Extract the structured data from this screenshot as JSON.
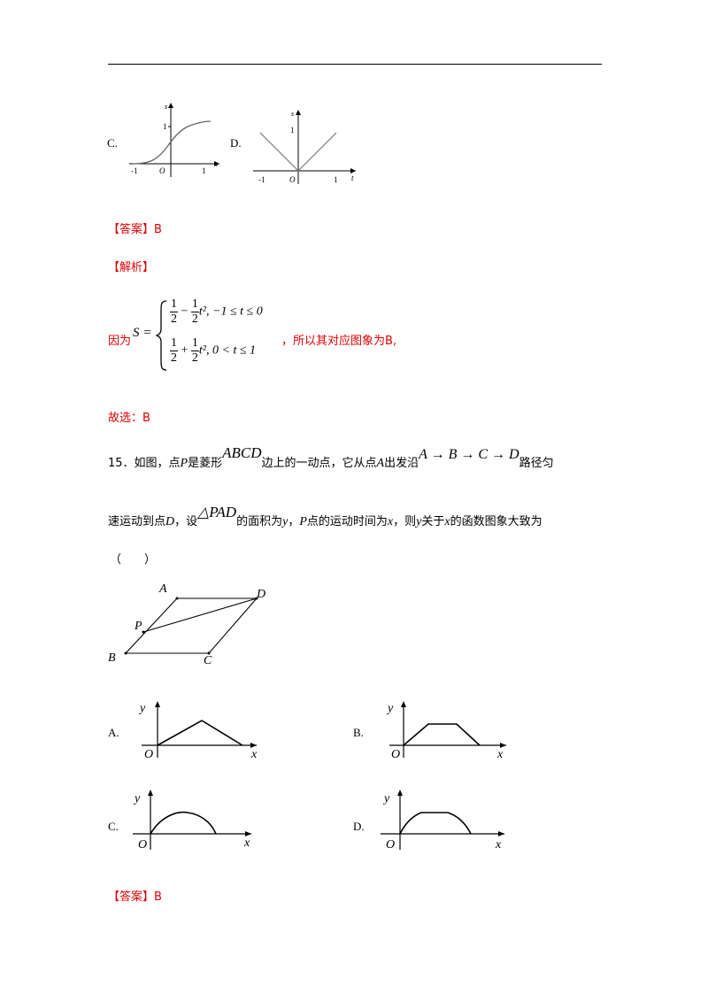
{
  "q14": {
    "opt_c_label": "C.",
    "opt_d_label": "D.",
    "graph_c": {
      "y_axis": "s",
      "y_tick": "1",
      "x_axis": "t",
      "x_ticks": [
        "-1",
        "O",
        "1"
      ]
    },
    "graph_d": {
      "y_axis": "s",
      "y_tick": "1",
      "x_axis": "t",
      "x_ticks": [
        "-1",
        "O",
        "1"
      ]
    },
    "answer": "【答案】B",
    "analysis_title": "【解析】",
    "analysis_prefix": "因为",
    "formula": {
      "lhs": "S =",
      "case1": {
        "num1": "1",
        "den1": "2",
        "minus": "−",
        "num2": "1",
        "den2": "2",
        "rest": "t², −1 ≤ t ≤ 0"
      },
      "case2": {
        "num1": "1",
        "den1": "2",
        "plus": "+",
        "num2": "1",
        "den2": "2",
        "rest": "t², 0 < t ≤ 1"
      }
    },
    "analysis_suffix": "，所以其对应图象为B,",
    "conclusion": "故选：B"
  },
  "q15": {
    "line1_a": "15．如图，点",
    "P": "P",
    "line1_b": "是菱形",
    "ABCD": "ABCD",
    "line1_c": "边上的一动点，它从点",
    "A": "A",
    "line1_d": "出发沿",
    "path": "A → B → C → D",
    "line1_e": "路径匀",
    "line2_a": "速运动到点",
    "D": "D",
    "line2_b": "，设",
    "PAD": "△PAD",
    "line2_c": "的面积为",
    "y": "y",
    "line2_d": "，",
    "line2_e": "点的运动时间为",
    "x": "x",
    "line2_f": "，则",
    "line2_g": "关于",
    "line2_h": "的函数图象大致为",
    "paren": "（　　）",
    "figure": {
      "A": "A",
      "D": "D",
      "P": "P",
      "B": "B",
      "C": "C"
    },
    "options": [
      {
        "label": "A.",
        "y": "y",
        "o": "O",
        "x": "x"
      },
      {
        "label": "B.",
        "y": "y",
        "o": "O",
        "x": "x"
      },
      {
        "label": "C.",
        "y": "y",
        "o": "O",
        "x": "x"
      },
      {
        "label": "D.",
        "y": "y",
        "o": "O",
        "x": "x"
      }
    ],
    "answer": "【答案】B"
  }
}
